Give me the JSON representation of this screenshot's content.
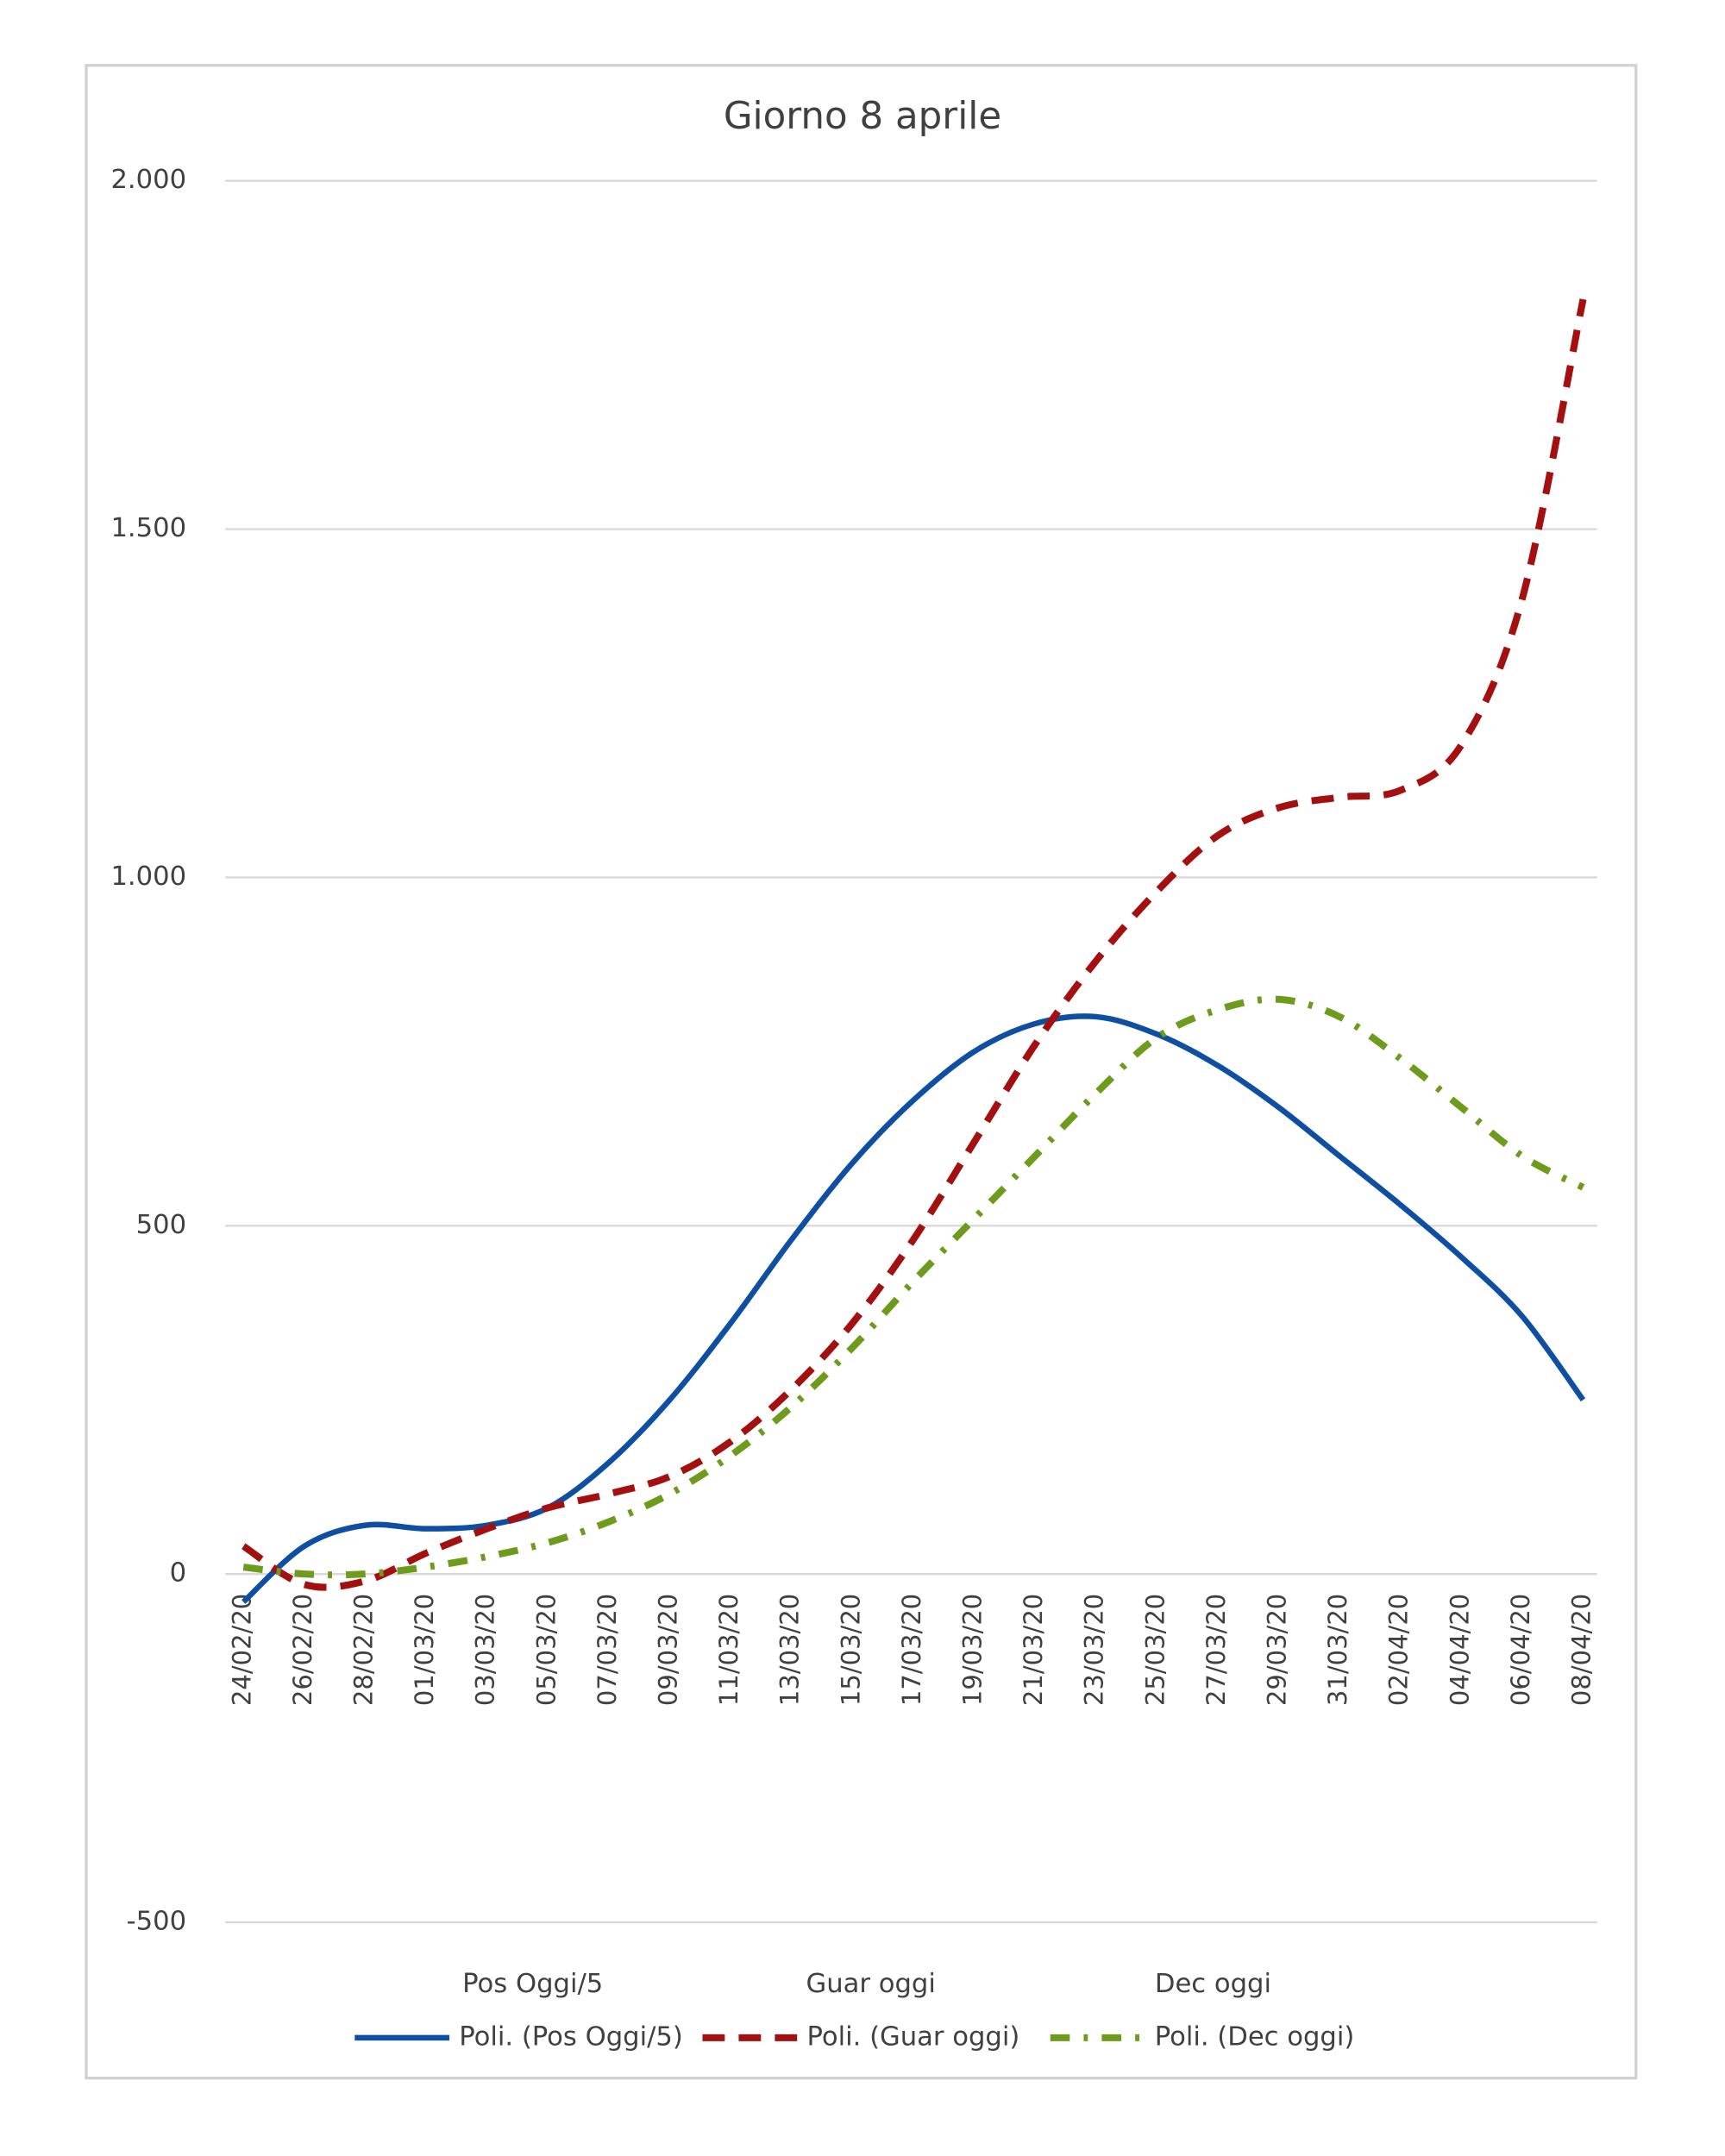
{
  "chart_data": {
    "type": "line",
    "title": "Giorno 8 aprile",
    "categories": [
      "24/02/20",
      "26/02/20",
      "28/02/20",
      "01/03/20",
      "03/03/20",
      "05/03/20",
      "07/03/20",
      "09/03/20",
      "11/03/20",
      "13/03/20",
      "15/03/20",
      "17/03/20",
      "19/03/20",
      "21/03/20",
      "23/03/20",
      "25/03/20",
      "27/03/20",
      "29/03/20",
      "31/03/20",
      "02/04/20",
      "04/04/20",
      "06/04/20",
      "08/04/20"
    ],
    "series": [
      {
        "name": "Pos Oggi/5",
        "trendline_name": "Poli. (Pos Oggi/5)",
        "color": "#0e4fa3",
        "dash": "solid",
        "values": [
          -40,
          40,
          70,
          65,
          70,
          95,
          160,
          250,
          360,
          480,
          590,
          680,
          750,
          790,
          800,
          775,
          730,
          670,
          600,
          530,
          455,
          370,
          250
        ]
      },
      {
        "name": "Guar oggi",
        "trendline_name": "Poli. (Guar oggi)",
        "color": "#a40f0f",
        "dash": "dash",
        "values": [
          40,
          -15,
          -10,
          30,
          65,
          95,
          115,
          140,
          190,
          265,
          360,
          480,
          620,
          760,
          880,
          980,
          1060,
          1100,
          1115,
          1125,
          1190,
          1400,
          1830
        ]
      },
      {
        "name": "Dec oggi",
        "trendline_name": "Poli. (Dec oggi)",
        "color": "#6e9b1c",
        "dash": "dashdot",
        "values": [
          10,
          0,
          0,
          10,
          25,
          45,
          75,
          115,
          170,
          240,
          325,
          420,
          510,
          600,
          690,
          770,
          810,
          825,
          800,
          740,
          670,
          600,
          555
        ]
      }
    ],
    "ylim": [
      -500,
      2000
    ],
    "yticks": [
      {
        "value": 2000,
        "label": "2.000"
      },
      {
        "value": 1500,
        "label": "1.500"
      },
      {
        "value": 1000,
        "label": "1.000"
      },
      500,
      0,
      -500
    ],
    "grid": true
  }
}
